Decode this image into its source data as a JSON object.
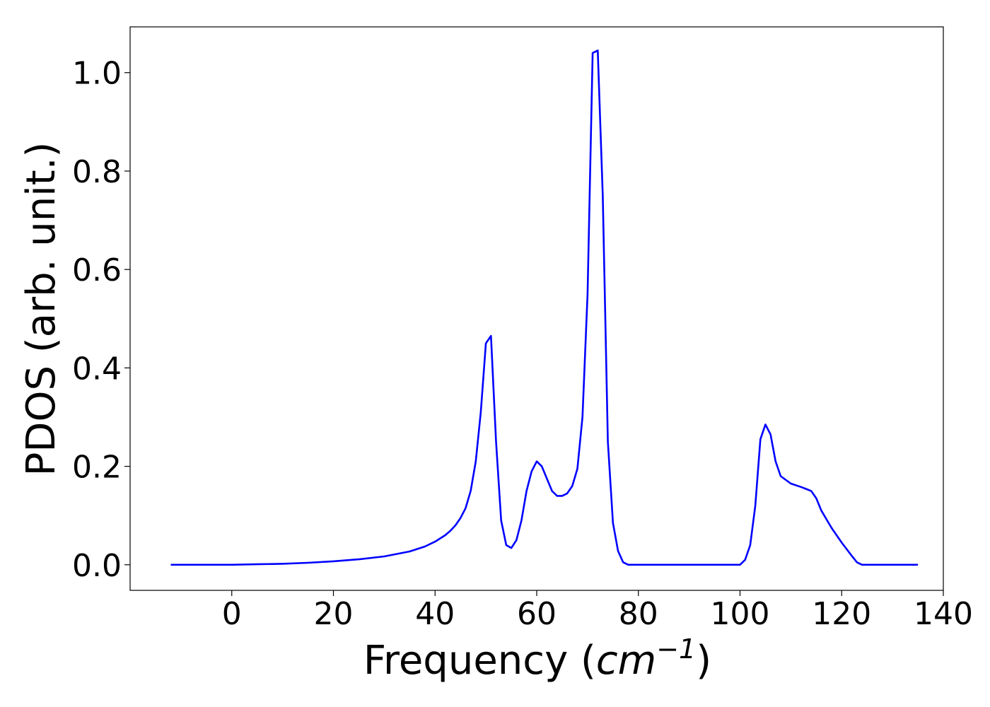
{
  "chart_data": {
    "type": "line",
    "title": "",
    "xlabel": "Frequency (",
    "xlabel_unit": "cm",
    "xlabel_exp": "−1",
    "xlabel_close": ")",
    "ylabel": "PDOS (arb. unit.)",
    "xlim": [
      -20,
      140
    ],
    "ylim": [
      -0.052,
      1.093
    ],
    "xticks": [
      0,
      20,
      40,
      60,
      80,
      100,
      120,
      140
    ],
    "xtick_labels": [
      "0",
      "20",
      "40",
      "60",
      "80",
      "100",
      "120",
      "140"
    ],
    "yticks": [
      0.0,
      0.2,
      0.4,
      0.6,
      0.8,
      1.0
    ],
    "ytick_labels": [
      "0.0",
      "0.2",
      "0.4",
      "0.6",
      "0.8",
      "1.0"
    ],
    "grid": false,
    "legend": "none",
    "series": [
      {
        "color": "#0000ff",
        "x": [
          -12,
          0,
          5,
          10,
          15,
          20,
          25,
          30,
          35,
          38,
          40,
          42,
          43,
          44,
          45,
          46,
          47,
          48,
          49,
          50,
          51,
          52,
          53,
          54,
          55,
          56,
          57,
          58,
          59,
          60,
          61,
          62,
          63,
          64,
          65,
          66,
          67,
          68,
          69,
          70,
          71,
          72,
          73,
          74,
          75,
          76,
          77,
          78,
          80,
          90,
          100,
          101,
          102,
          103,
          104,
          105,
          106,
          107,
          108,
          110,
          112,
          114,
          115,
          116,
          118,
          120,
          122,
          123,
          124,
          126,
          135
        ],
        "y": [
          0.0,
          0.0,
          0.001,
          0.002,
          0.004,
          0.007,
          0.011,
          0.017,
          0.027,
          0.037,
          0.047,
          0.06,
          0.069,
          0.08,
          0.095,
          0.115,
          0.15,
          0.21,
          0.31,
          0.45,
          0.465,
          0.25,
          0.09,
          0.04,
          0.034,
          0.05,
          0.09,
          0.15,
          0.19,
          0.21,
          0.2,
          0.175,
          0.15,
          0.14,
          0.14,
          0.145,
          0.16,
          0.195,
          0.3,
          0.55,
          1.04,
          1.045,
          0.75,
          0.25,
          0.085,
          0.028,
          0.005,
          0.0,
          0.0,
          0.0,
          0.0,
          0.01,
          0.04,
          0.12,
          0.255,
          0.285,
          0.265,
          0.21,
          0.18,
          0.165,
          0.158,
          0.15,
          0.135,
          0.11,
          0.075,
          0.045,
          0.018,
          0.005,
          0.0,
          0.0,
          0.0
        ]
      }
    ]
  }
}
